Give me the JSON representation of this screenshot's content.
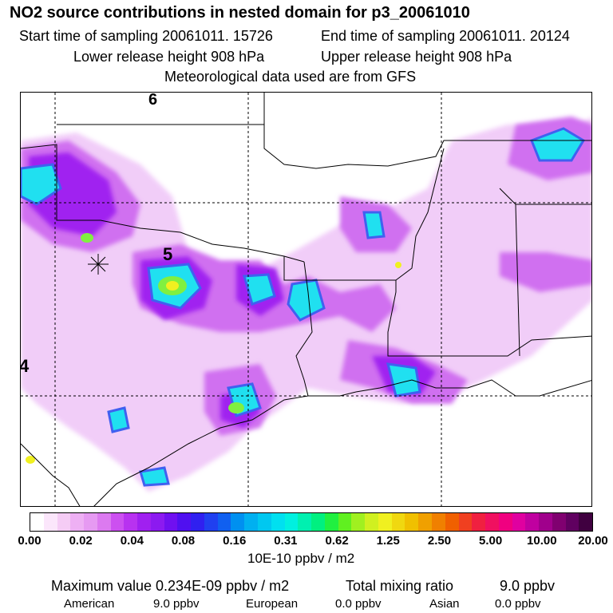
{
  "header": {
    "title": "NO2 source contributions in nested domain for p3_20061010",
    "start_label": "Start time of sampling 20061011. 15726",
    "end_label": "End time of sampling 20061011. 20124",
    "lower_label": "Lower release height  908 hPa",
    "upper_label": "Upper release height  908 hPa",
    "met_label": "Meteorological data used are from GFS"
  },
  "map": {
    "labels": [
      "6",
      "5",
      "4"
    ],
    "colors": {
      "plume_light": "#f0c8f8",
      "plume_mid": "#d070f0",
      "plume_purple": "#a020f0",
      "plume_blue": "#4060f0",
      "plume_cyan": "#20e0f0",
      "plume_green": "#80f040",
      "plume_yellow": "#f0f020",
      "border": "#000000"
    }
  },
  "chart_data": {
    "type": "heatmap",
    "title": "NO2 source contributions in nested domain for p3_20061010",
    "colorbar": {
      "tick_labels": [
        "0.00",
        "0.02",
        "0.04",
        "0.08",
        "0.16",
        "0.31",
        "0.62",
        "1.25",
        "2.50",
        "5.00",
        "10.00",
        "20.00"
      ],
      "units": "10E-10 ppbv / m2",
      "colors": [
        "#ffffff",
        "#fbe6fb",
        "#f5ccf5",
        "#eeb0f4",
        "#e69af2",
        "#dc7af0",
        "#cc50f0",
        "#b832f0",
        "#a020f0",
        "#8c1af0",
        "#7010f0",
        "#5010f0",
        "#3020f0",
        "#2040f0",
        "#1060f0",
        "#0090f0",
        "#00b0f0",
        "#00c8f0",
        "#00e0f0",
        "#00f0e0",
        "#00f0b0",
        "#00f080",
        "#20f040",
        "#60f020",
        "#a0f020",
        "#d0f020",
        "#f0f020",
        "#f0d810",
        "#f0c000",
        "#f0a000",
        "#f08000",
        "#f06000",
        "#f04020",
        "#f02040",
        "#f01060",
        "#f00080",
        "#e000a0",
        "#c000a0",
        "#a0008c",
        "#800070",
        "#600060",
        "#400040"
      ]
    }
  },
  "stats": {
    "max_label": "Maximum value  0.234E-09 ppbv / m2",
    "total_label": "Total mixing ratio",
    "total_value": "9.0 ppbv",
    "american_label": "American",
    "american_value": "9.0 ppbv",
    "european_label": "European",
    "european_value": "0.0 ppbv",
    "asian_label": "Asian",
    "asian_value": "0.0 ppbv"
  }
}
